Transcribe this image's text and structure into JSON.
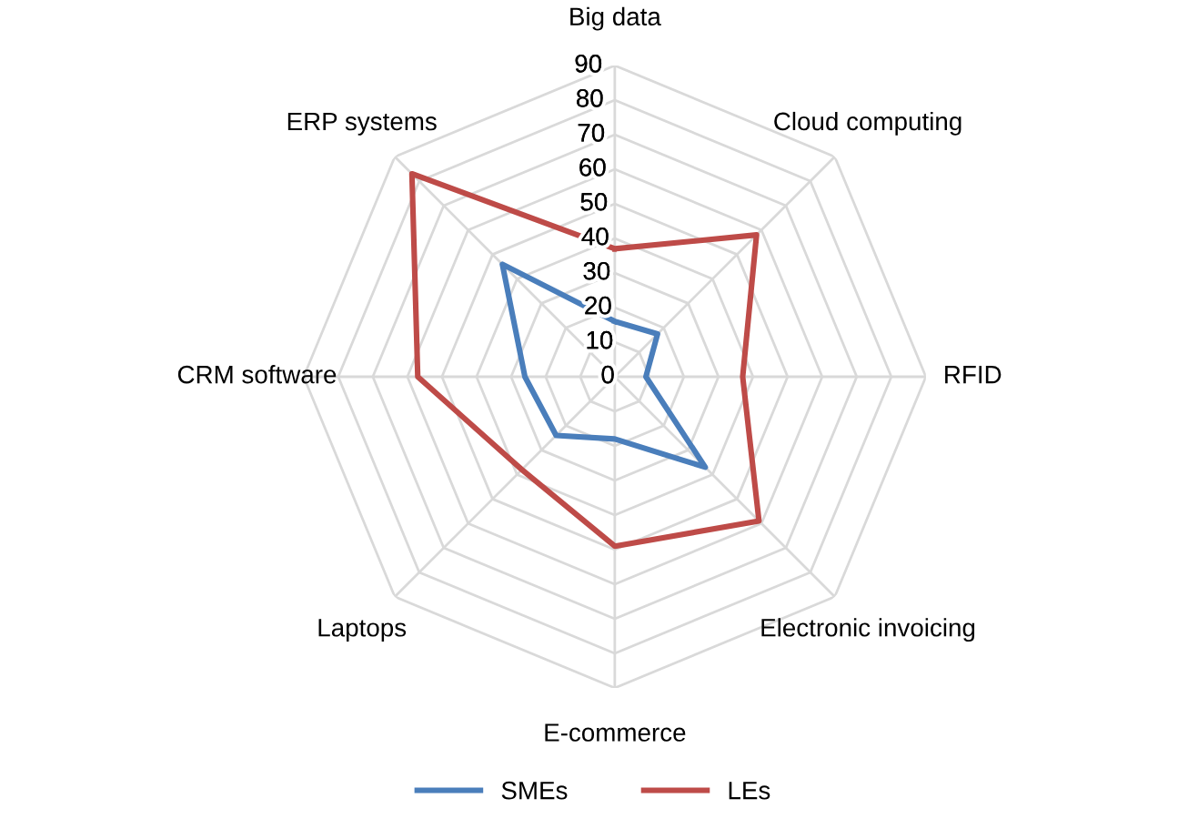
{
  "chart_data": {
    "type": "radar",
    "categories": [
      "Big data",
      "Cloud computing",
      "RFID",
      "Electronic invoicing",
      "E-commerce",
      "Laptops",
      "CRM software",
      "ERP systems"
    ],
    "series": [
      {
        "name": "SMEs",
        "color": "#4a7ebb",
        "values": [
          16,
          17.5,
          9,
          37,
          18,
          24,
          26,
          46
        ]
      },
      {
        "name": "LEs",
        "color": "#be4b48",
        "values": [
          37,
          58,
          37,
          59,
          49,
          38,
          57,
          83
        ]
      }
    ],
    "ylim": [
      0,
      90
    ],
    "yticks": [
      0,
      10,
      20,
      30,
      40,
      50,
      60,
      70,
      80,
      90
    ],
    "grid": true,
    "legend": "bottom",
    "marker": "none",
    "line_style": "solid"
  }
}
